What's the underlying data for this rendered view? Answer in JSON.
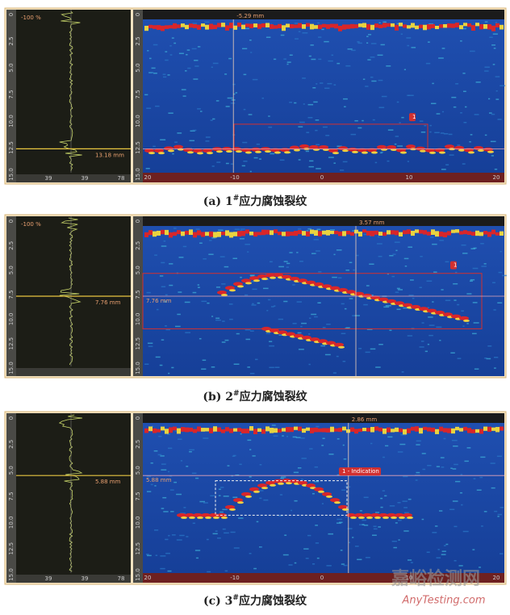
{
  "panels": [
    {
      "caption": {
        "label": "(a) 1",
        "mark": "#",
        "text": "应力腐蚀裂纹"
      },
      "ascan": {
        "amplitude_label": "-100 %",
        "depth_label": "13.18 mm",
        "depth_ticks": [
          "0",
          "2.5",
          "5.0",
          "7.5",
          "10.0",
          "12.5",
          "15.0"
        ],
        "amplitude_ticks": [
          "39",
          "39",
          "78"
        ]
      },
      "bscan": {
        "cursor_label": "-5.29 mm",
        "marker": "1",
        "depth_ticks": [
          "0",
          "2.5",
          "5.0",
          "7.5",
          "10.0",
          "12.5",
          "15.0"
        ],
        "scan_ticks": [
          "20",
          "-10",
          "0",
          "10",
          "20"
        ]
      }
    },
    {
      "caption": {
        "label": "(b) 2",
        "mark": "#",
        "text": "应力腐蚀裂纹"
      },
      "ascan": {
        "amplitude_label": "-100 %",
        "depth_label": "7.76 mm",
        "depth_ticks": [
          "0",
          "2.5",
          "5.0",
          "7.5",
          "10.0",
          "12.5",
          "15.0"
        ],
        "amplitude_ticks": []
      },
      "bscan": {
        "cursor_label": "3.57 mm",
        "depth_label": "7.76 mm",
        "marker": "1",
        "depth_ticks": [
          "0",
          "2.5",
          "5.0",
          "7.5",
          "10.0",
          "12.5",
          "15.0"
        ],
        "scan_ticks": []
      }
    },
    {
      "caption": {
        "label": "(c) 3",
        "mark": "#",
        "text": "应力腐蚀裂纹"
      },
      "ascan": {
        "depth_label": "5.88 mm",
        "depth_ticks": [
          "0",
          "2.5",
          "5.0",
          "7.5",
          "10.0",
          "12.5",
          "15.0"
        ],
        "amplitude_ticks": [
          "39",
          "39",
          "78"
        ]
      },
      "bscan": {
        "cursor_label": "2.86 mm",
        "depth_label": "5.88 mm",
        "marker": "1 - Indication",
        "depth_ticks": [
          "0",
          "2.5",
          "5.0",
          "7.5",
          "10.0",
          "12.5",
          "15.0"
        ],
        "scan_ticks": [
          "20",
          "-10",
          "0",
          "10",
          "20"
        ]
      }
    }
  ],
  "watermark": {
    "title": "嘉峪检测网",
    "site": "AnyTesting.com"
  }
}
